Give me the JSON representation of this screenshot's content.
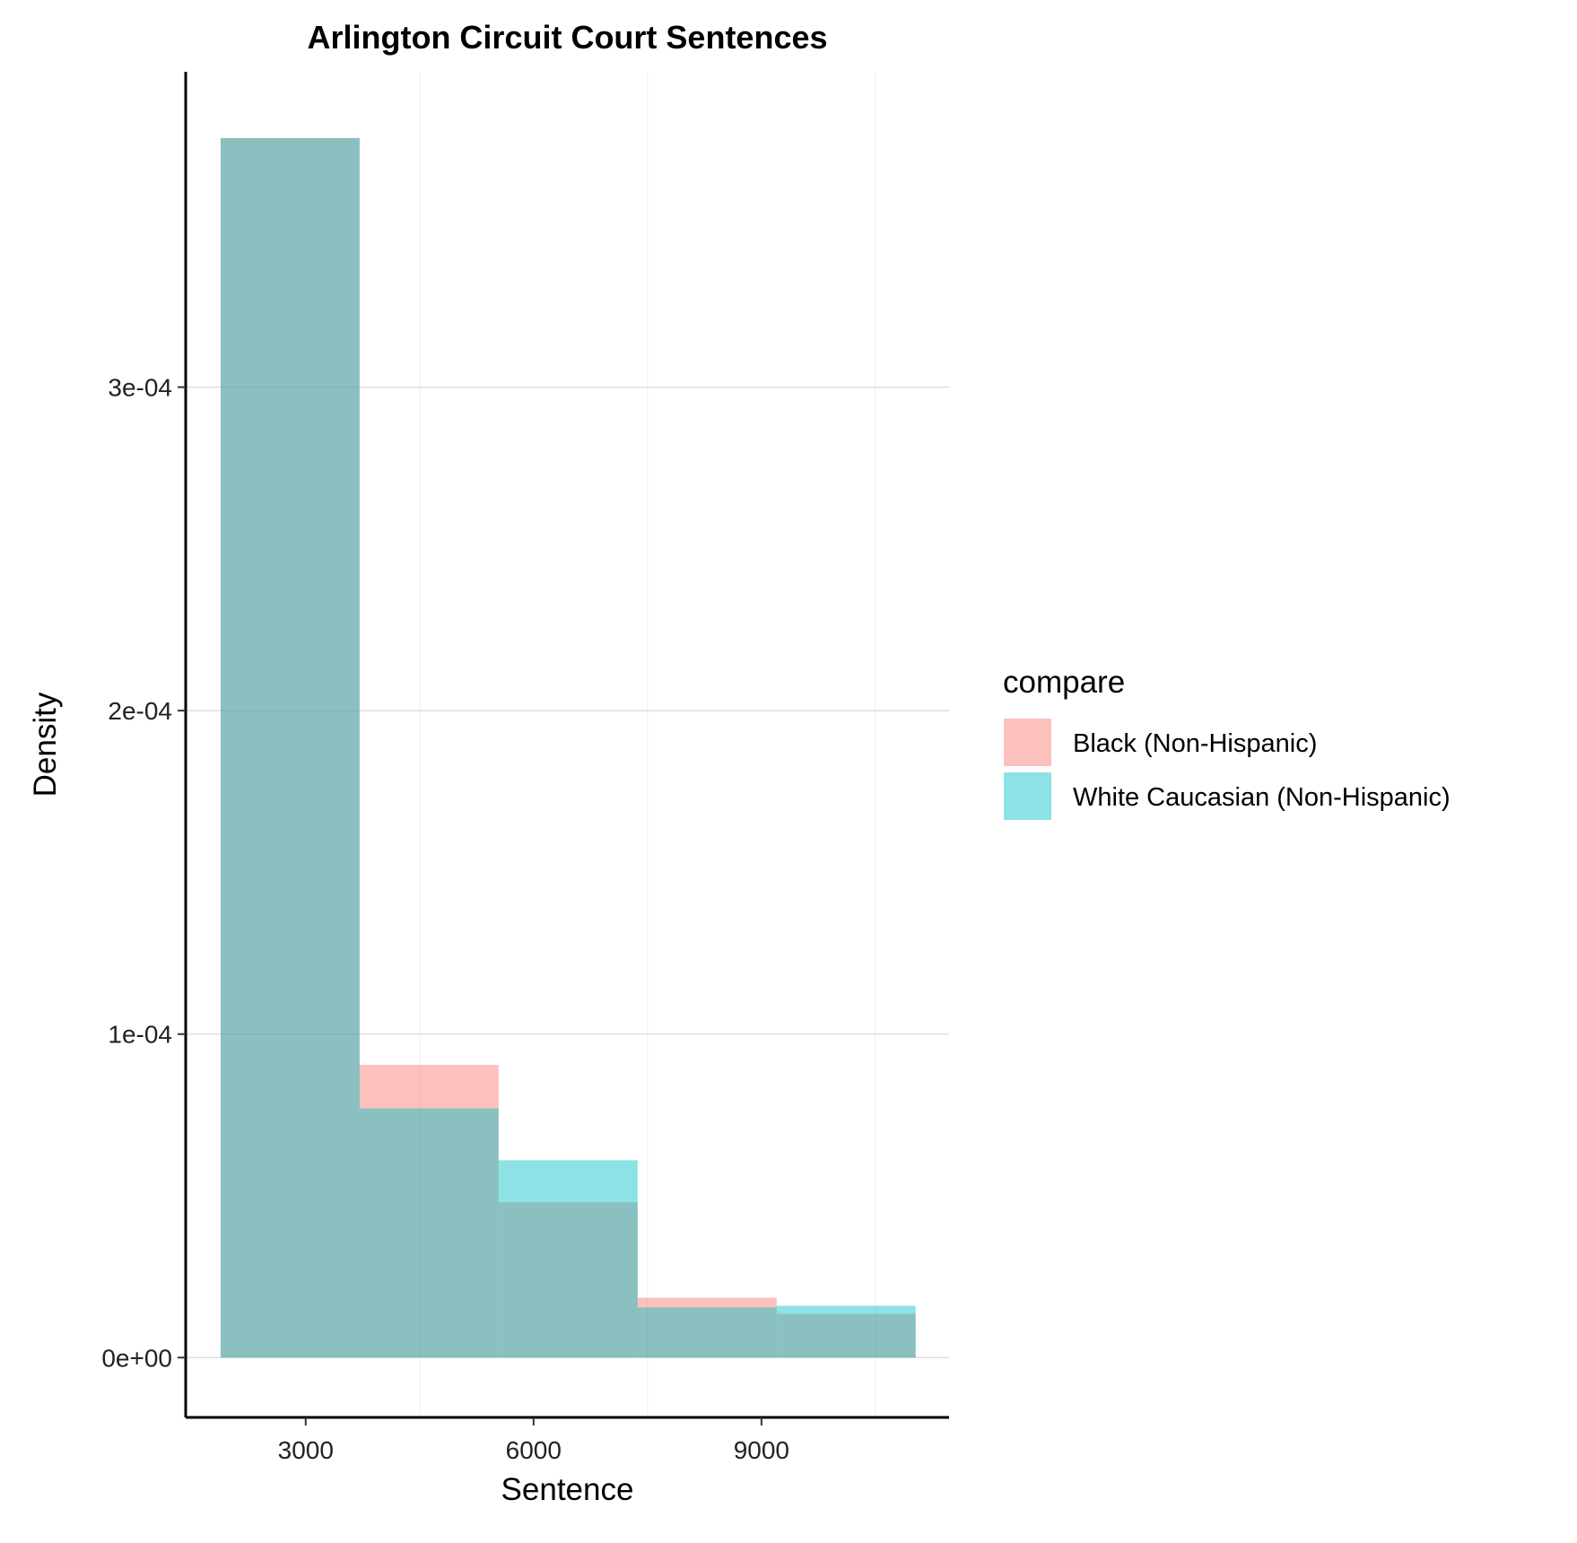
{
  "chart_data": {
    "type": "histogram",
    "title": "Arlington Circuit Court Sentences",
    "xlabel": "Sentence",
    "ylabel": "Density",
    "xlim": [
      1420,
      11470
    ],
    "ylim": [
      -1.85e-05,
      0.0003975
    ],
    "x_ticks": [
      3000,
      6000,
      9000
    ],
    "x_tick_labels": [
      "3000",
      "6000",
      "9000"
    ],
    "y_ticks": [
      0,
      0.0001,
      0.0002,
      0.0003
    ],
    "y_tick_labels": [
      "0e+00",
      "1e-04",
      "2e-04",
      "3e-04"
    ],
    "bin_edges": [
      1880,
      3710,
      5540,
      7370,
      9200,
      11030
    ],
    "legend": {
      "title": "compare",
      "position": "right"
    },
    "series": [
      {
        "name": "Black (Non-Hispanic)",
        "color": "#F8766D",
        "values": [
          0.000377,
          9.05e-05,
          4.8e-05,
          1.85e-05,
          1.35e-05
        ]
      },
      {
        "name": "White Caucasian (Non-Hispanic)",
        "color": "#00BFC4",
        "values": [
          0.000377,
          7.7e-05,
          6.1e-05,
          1.55e-05,
          1.6e-05
        ]
      }
    ],
    "fill_opacity": 0.45,
    "grid": true
  }
}
